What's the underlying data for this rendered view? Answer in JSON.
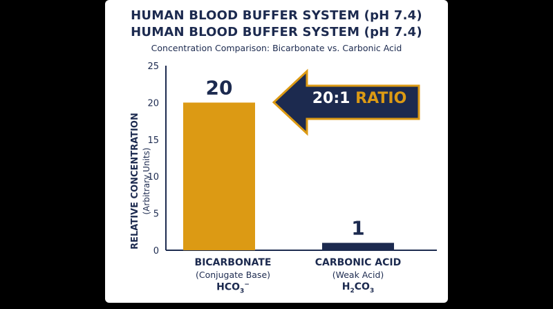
{
  "title_line_1": "HUMAN BLOOD BUFFER SYSTEM (pH 7.4)",
  "title_line_2": "HUMAN BLOOD BUFFER SYSTEM (pH 7.4)",
  "subtitle": "Concentration Comparison: Bicarbonate vs. Carbonic Acid",
  "y_axis": {
    "label": "RELATIVE CONCENTRATION",
    "units": "(Arbitrary Units)"
  },
  "categories_display": [
    {
      "name": "BICARBONATE",
      "role": "(Conjugate Base)",
      "formula_prefix": "HCO",
      "formula_sub": "3",
      "formula_sup": "−"
    },
    {
      "name": "CARBONIC ACID",
      "role": "(Weak Acid)",
      "formula_prefix": "H",
      "formula_sub": "2",
      "formula_mid": "CO",
      "formula_sub2": "3"
    }
  ],
  "ratio_callout": {
    "number": "20:1",
    "word": "RATIO"
  },
  "colors": {
    "navy": "#1c2a4f",
    "gold": "#dc9a14",
    "background": "#000000",
    "card": "#ffffff"
  },
  "chart_data": {
    "type": "bar",
    "categories": [
      "BICARBONATE",
      "CARBONIC ACID"
    ],
    "values": [
      20,
      1
    ],
    "value_labels": [
      "20",
      "1"
    ],
    "bar_colors": [
      "#dc9a14",
      "#1c2a4f"
    ],
    "ylim": [
      0,
      25
    ],
    "yticks": [
      "0",
      "5",
      "10",
      "15",
      "20",
      "25"
    ],
    "grid": false,
    "legend": "none"
  }
}
